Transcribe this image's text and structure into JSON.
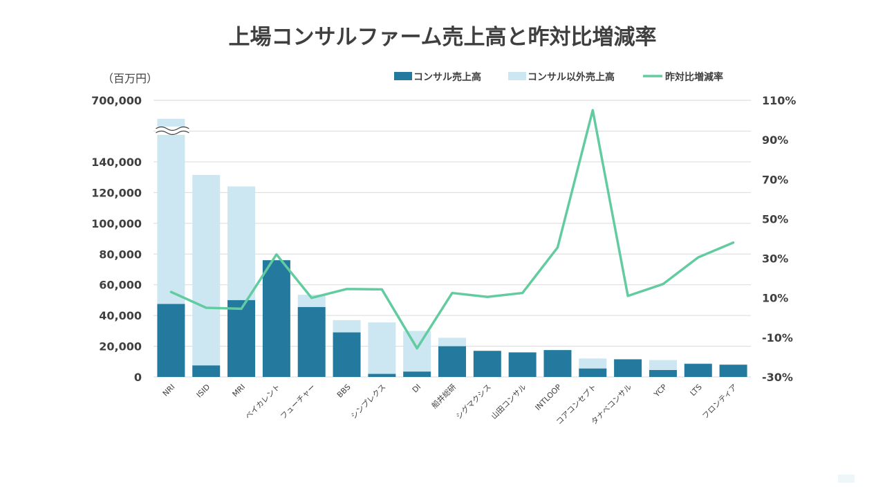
{
  "chart_data": {
    "type": "bar",
    "title": "上場コンサルファーム売上高と昨対比増減率",
    "left_unit": "（百万円）",
    "categories": [
      "NRI",
      "ISID",
      "MRI",
      "ベイカレント",
      "フューチャー",
      "BBS",
      "シンプレクス",
      "DI",
      "船井総研",
      "シグマクシス",
      "山田コンサル",
      "INTLOOP",
      "コアコンセプト",
      "タナベコンサル",
      "YCP",
      "LTS",
      "フロンティア"
    ],
    "series": [
      {
        "name": "コンサル売上高",
        "type": "bar",
        "stack": "sales",
        "color": "#23799e",
        "axis": "left",
        "values": [
          47500,
          7500,
          50000,
          76000,
          45500,
          29000,
          2000,
          3500,
          20000,
          17000,
          16000,
          17500,
          5500,
          11500,
          4500,
          8500,
          8000
        ]
      },
      {
        "name": "コンサル以外売上高",
        "type": "bar",
        "stack": "sales",
        "color": "#cce6f2",
        "axis": "left",
        "values": [
          640500,
          124000,
          74000,
          0,
          8000,
          8000,
          33500,
          26500,
          5500,
          0,
          0,
          0,
          6500,
          0,
          6500,
          500,
          0
        ]
      },
      {
        "name": "昨対比増減率",
        "type": "line",
        "color": "#62cba0",
        "axis": "right",
        "values": [
          13,
          5,
          4.5,
          32,
          10,
          14.5,
          14.3,
          -15.5,
          12.5,
          10.5,
          12.5,
          35.5,
          105,
          11,
          17,
          30.5,
          38
        ]
      }
    ],
    "left_axis": {
      "ticks": [
        "0",
        "20,000",
        "40,000",
        "60,000",
        "80,000",
        "100,000",
        "120,000",
        "140,000",
        "700,000"
      ],
      "break": {
        "from": 160000,
        "to": 680000
      },
      "ylim": [
        0,
        700000
      ]
    },
    "right_axis": {
      "ticks": [
        "-30%",
        "-10%",
        "10%",
        "30%",
        "50%",
        "70%",
        "90%",
        "110%"
      ],
      "ylim": [
        -30,
        110
      ]
    },
    "legend_position": "top-right",
    "grid": true
  }
}
